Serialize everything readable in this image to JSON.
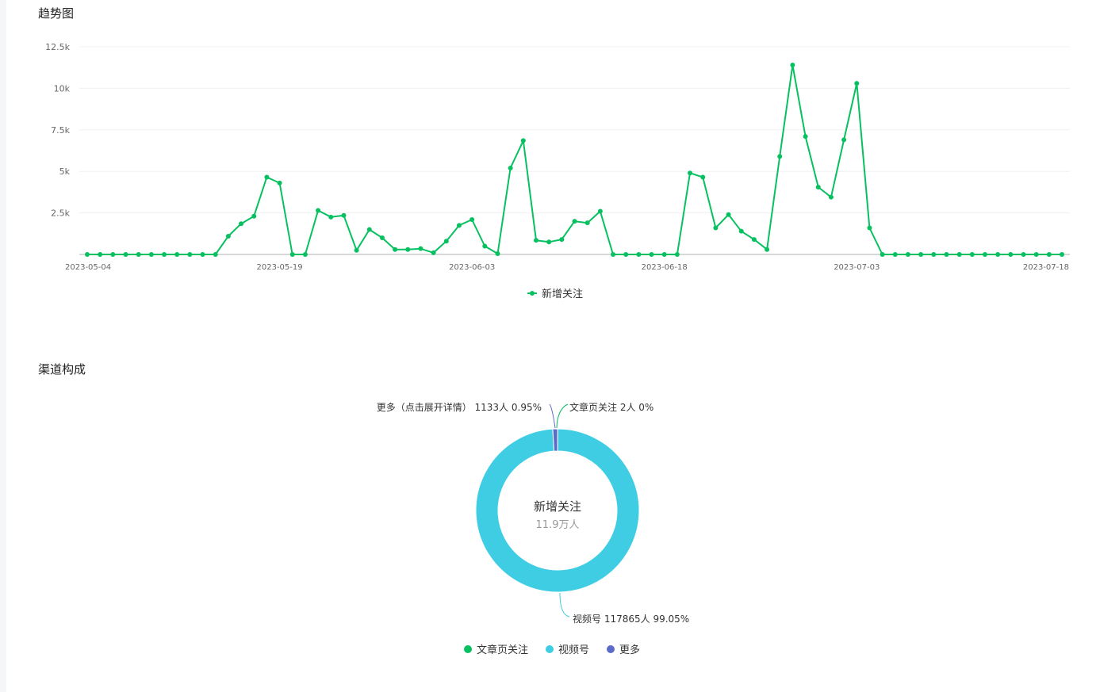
{
  "sections": {
    "trend_title": "趋势图",
    "channel_title": "渠道构成"
  },
  "trend_legend_label": "新增关注",
  "pie_center": {
    "title": "新增关注",
    "subtitle": "11.9万人"
  },
  "pie_labels": {
    "more": "更多（点击展开详情） 1133人 0.95%",
    "article": "文章页关注 2人 0%",
    "video": "视频号 117865人 99.05%"
  },
  "pie_legend": [
    "文章页关注",
    "视频号",
    "更多"
  ],
  "colors": {
    "line": "#07c160",
    "article": "#07c160",
    "video": "#3fcde3",
    "more": "#5b6bc7"
  },
  "chart_data": [
    {
      "type": "line",
      "title": "趋势图",
      "series": [
        {
          "name": "新增关注",
          "values": [
            0,
            0,
            0,
            0,
            0,
            0,
            0,
            0,
            0,
            0,
            0,
            1100,
            1850,
            2300,
            4650,
            4300,
            0,
            0,
            2650,
            2250,
            2350,
            250,
            1500,
            1000,
            300,
            300,
            350,
            100,
            800,
            1750,
            2100,
            500,
            50,
            5200,
            6850,
            850,
            750,
            900,
            2000,
            1900,
            2600,
            0,
            0,
            0,
            0,
            0,
            0,
            4900,
            4650,
            1600,
            2400,
            1400,
            900,
            300,
            5900,
            11400,
            7100,
            4050,
            3450,
            6900,
            10300,
            1600,
            0,
            0,
            0,
            0,
            0,
            0,
            0,
            0,
            0,
            0,
            0,
            0,
            0,
            0,
            0
          ]
        }
      ],
      "x_tick_labels": [
        "2023-05-04",
        "2023-05-19",
        "2023-06-03",
        "2023-06-18",
        "2023-07-03",
        "2023-07-18"
      ],
      "y_tick_labels": [
        "2.5k",
        "5k",
        "7.5k",
        "10k",
        "12.5k"
      ],
      "ylim": [
        0,
        12500
      ],
      "grid": true,
      "legend": "bottom"
    },
    {
      "type": "pie",
      "title": "渠道构成",
      "categories": [
        "文章页关注",
        "视频号",
        "更多"
      ],
      "values": [
        2,
        117865,
        1133
      ],
      "percent": [
        0,
        99.05,
        0.95
      ],
      "legend": "bottom"
    }
  ]
}
